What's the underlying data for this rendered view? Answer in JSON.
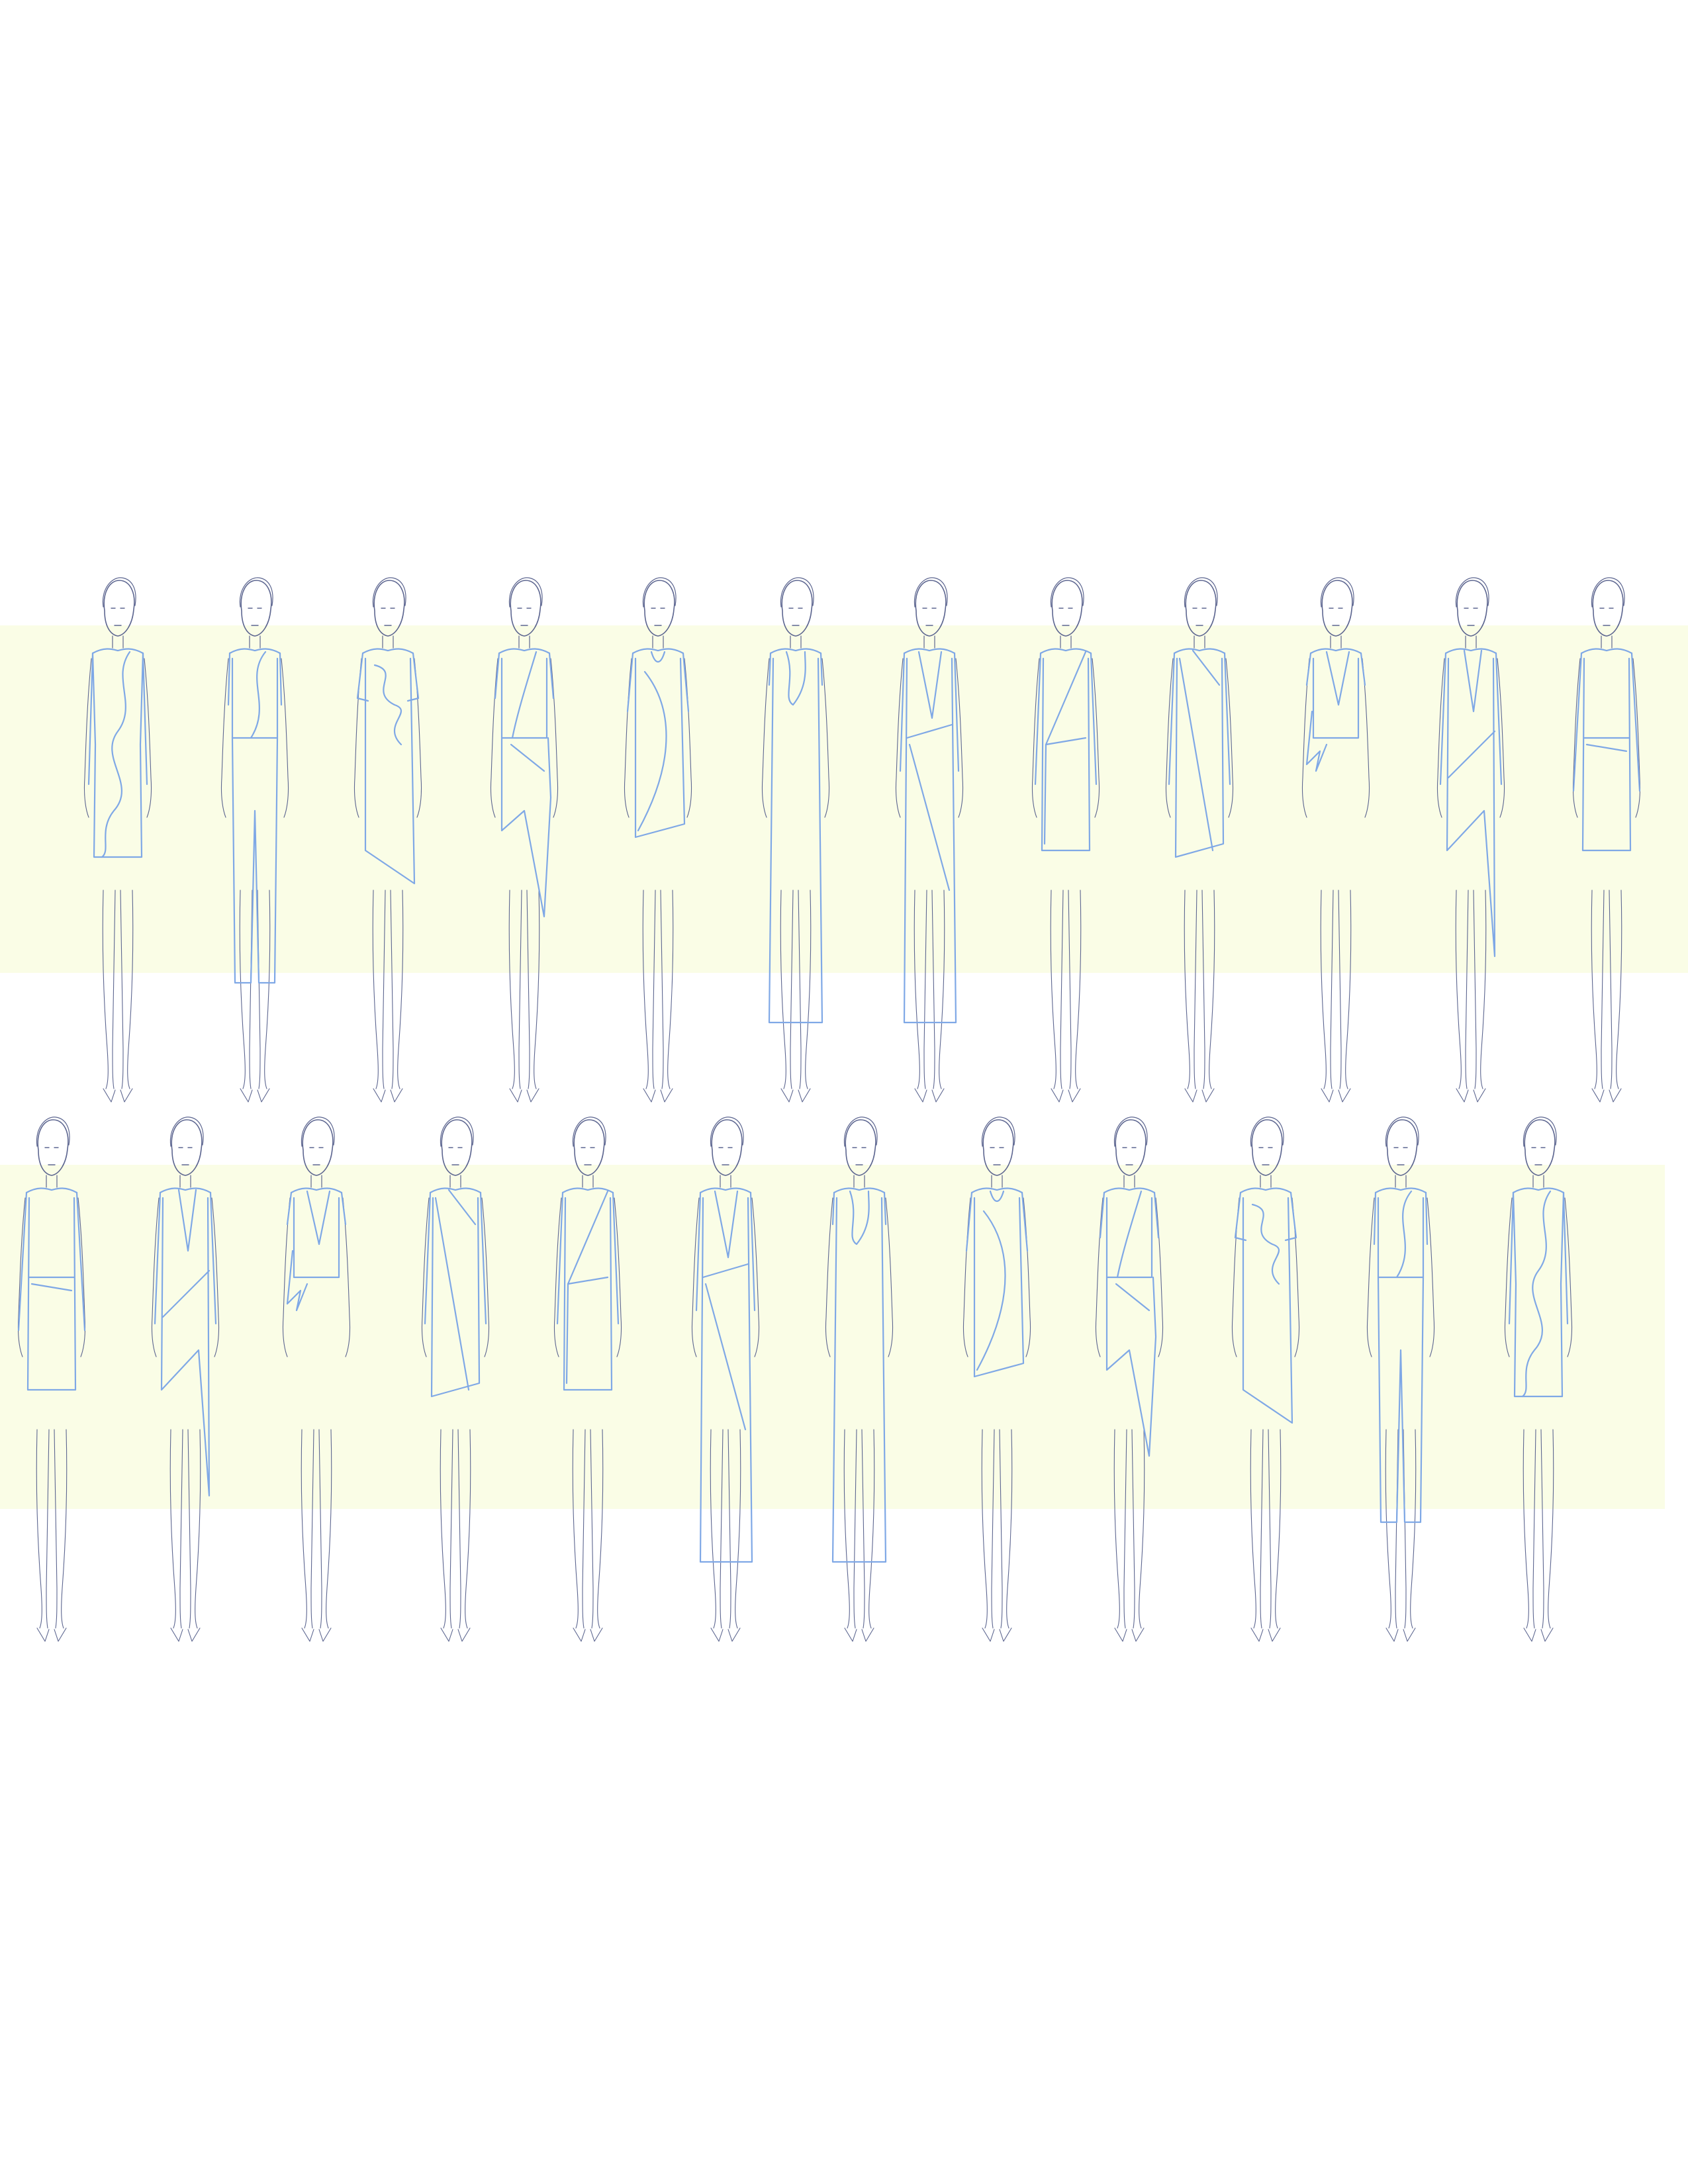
{
  "sheet": {
    "title": "",
    "background_color": "#ffffff",
    "band_color": "#fafde6",
    "body_line_color": "#5d6690",
    "garment_line_color": "#7fa8e6"
  },
  "rows": [
    {
      "name": "top-row",
      "looks": [
        {
          "garment": "wavy-seam-dress-long-sleeve"
        },
        {
          "garment": "wavy-seam-top-trousers"
        },
        {
          "garment": "wavy-top-asymmetric-skirt"
        },
        {
          "garment": "drape-top-asymmetric-skirt"
        },
        {
          "garment": "cowl-neck-asymmetric-dress"
        },
        {
          "garment": "v-neck-maxi-gown"
        },
        {
          "garment": "v-neck-wrap-gown"
        },
        {
          "garment": "one-shoulder-wrap-dress"
        },
        {
          "garment": "diagonal-wrap-dress"
        },
        {
          "garment": "tied-drape-top"
        },
        {
          "garment": "asymmetric-handkerchief-dress"
        },
        {
          "garment": "belted-long-sleeve-dress"
        }
      ]
    },
    {
      "name": "bottom-row",
      "looks": [
        {
          "garment": "belted-long-sleeve-dress"
        },
        {
          "garment": "asymmetric-handkerchief-dress"
        },
        {
          "garment": "tied-drape-top"
        },
        {
          "garment": "diagonal-wrap-dress"
        },
        {
          "garment": "one-shoulder-wrap-dress"
        },
        {
          "garment": "v-neck-wrap-gown"
        },
        {
          "garment": "v-neck-maxi-gown"
        },
        {
          "garment": "cowl-neck-asymmetric-dress"
        },
        {
          "garment": "drape-top-asymmetric-skirt"
        },
        {
          "garment": "wavy-top-asymmetric-skirt"
        },
        {
          "garment": "wavy-seam-top-trousers"
        },
        {
          "garment": "wavy-seam-dress-long-sleeve"
        }
      ]
    }
  ]
}
